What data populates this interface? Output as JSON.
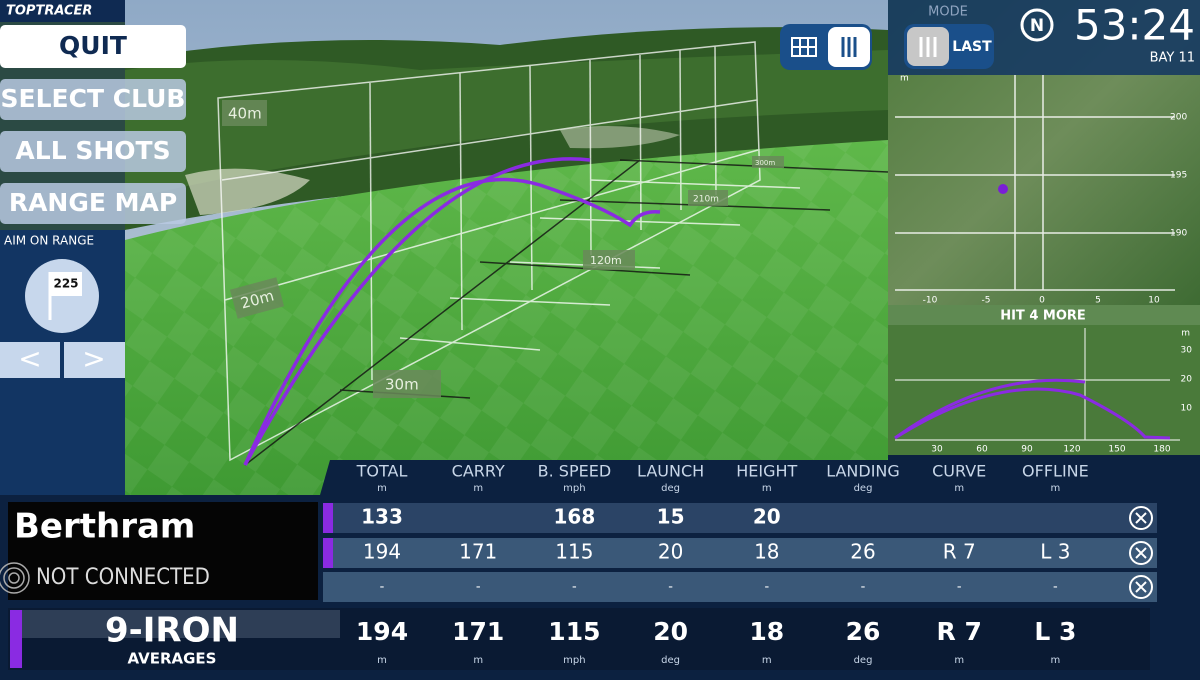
{
  "logo": "TOPTRACER",
  "menu": {
    "quit": "QUIT",
    "select_club": "SELECT CLUB",
    "all_shots": "ALL SHOTS",
    "range_map": "RANGE MAP"
  },
  "aim": {
    "title": "AIM ON RANGE",
    "target": "225",
    "prev": "<",
    "next": ">"
  },
  "scene": {
    "distance_labels": [
      "40m",
      "20m",
      "30m",
      "120m",
      "210m",
      "300m"
    ]
  },
  "top_bar": {
    "mode_label": "MODE",
    "mode_value": "LAST",
    "badge": "N",
    "time": "53:24",
    "bay": "BAY 11"
  },
  "top_view": {
    "unit": "m",
    "y_ticks": [
      "200",
      "195",
      "190"
    ],
    "x_ticks": [
      "-10",
      "-5",
      "0",
      "5",
      "10"
    ]
  },
  "side_view": {
    "banner": "HIT 4 MORE",
    "unit": "m",
    "y_ticks": [
      "30",
      "20",
      "10"
    ],
    "x_ticks": [
      "30",
      "60",
      "90",
      "120",
      "150",
      "180"
    ]
  },
  "table": {
    "columns": [
      {
        "name": "TOTAL",
        "unit": "m"
      },
      {
        "name": "CARRY",
        "unit": "m"
      },
      {
        "name": "B. SPEED",
        "unit": "mph"
      },
      {
        "name": "LAUNCH",
        "unit": "deg"
      },
      {
        "name": "HEIGHT",
        "unit": "m"
      },
      {
        "name": "LANDING",
        "unit": "deg"
      },
      {
        "name": "CURVE",
        "unit": "m"
      },
      {
        "name": "OFFLINE",
        "unit": "m"
      }
    ],
    "rows": [
      [
        "133",
        null,
        "168",
        "15",
        "20",
        null,
        null,
        null
      ],
      [
        "194",
        "171",
        "115",
        "20",
        "18",
        "26",
        "R 7",
        "L 3"
      ],
      [
        "-",
        "-",
        "-",
        "-",
        "-",
        "-",
        "-",
        "-"
      ]
    ]
  },
  "player": {
    "name": "Berthram",
    "status": "NOT CONNECTED"
  },
  "averages": {
    "club": "9-IRON",
    "label": "AVERAGES",
    "values": [
      "194",
      "171",
      "115",
      "20",
      "18",
      "26",
      "R 7",
      "L 3"
    ]
  }
}
